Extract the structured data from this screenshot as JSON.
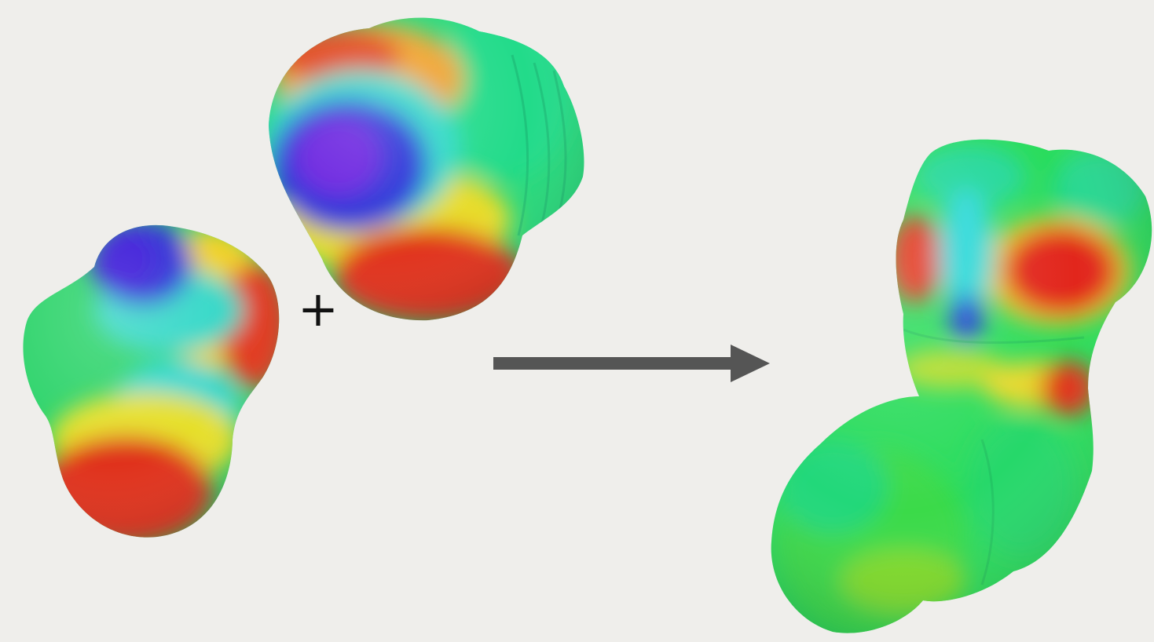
{
  "operator": "+",
  "colors": {
    "background": "#efeeeb",
    "arrow": "#555555",
    "negative": "#3a2fe0",
    "neutral": "#22d960",
    "positive": "#e02a1e"
  },
  "molecules": [
    {
      "role": "reactant",
      "name": "reactant-1-esp-surface",
      "color_map": "electrostatic-potential"
    },
    {
      "role": "reactant",
      "name": "reactant-2-esp-surface",
      "color_map": "electrostatic-potential"
    },
    {
      "role": "product",
      "name": "product-esp-surface",
      "color_map": "electrostatic-potential"
    }
  ]
}
